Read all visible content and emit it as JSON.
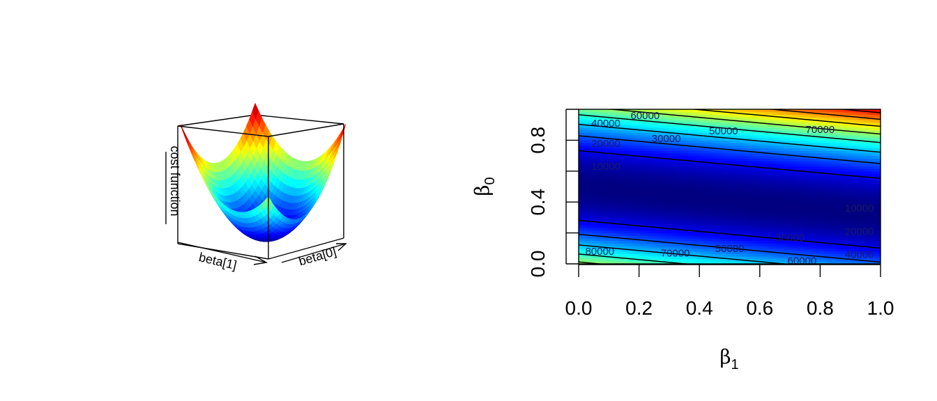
{
  "chart_data": [
    {
      "type": "surface",
      "zlabel": "cost function",
      "xlabel": "beta[1]",
      "ylabel": "beta[0]",
      "colormap": "jet (blue low to red high)",
      "shape": "convex bowl, minimum near beta[1] high / beta[0] middle",
      "box": true
    },
    {
      "type": "heatmap",
      "subtype": "filled contour with contour lines",
      "xlabel": "β",
      "xlabel_sub": "1",
      "ylabel": "β",
      "ylabel_sub": "0",
      "xlim": [
        0,
        1
      ],
      "ylim": [
        0,
        1
      ],
      "xticks": [
        "0.0",
        "0.2",
        "0.4",
        "0.6",
        "0.8",
        "1.0"
      ],
      "yticks": [
        "0.0",
        "0.4",
        "0.8"
      ],
      "colormap": "jet (blue low to red high)",
      "value_range": [
        0,
        95000
      ],
      "valley": {
        "y_at_x0": 0.5,
        "slope": -0.18
      },
      "contour_levels": [
        10000,
        20000,
        30000,
        40000,
        50000,
        60000,
        70000,
        80000,
        90000
      ],
      "contour_labels": [
        {
          "text": "60000",
          "x": 0.22,
          "y": 0.96
        },
        {
          "text": "70000",
          "x": 0.8,
          "y": 0.87
        },
        {
          "text": "40000",
          "x": 0.09,
          "y": 0.91
        },
        {
          "text": "50000",
          "x": 0.48,
          "y": 0.86
        },
        {
          "text": "30000",
          "x": 0.29,
          "y": 0.81
        },
        {
          "text": "20000",
          "x": 0.09,
          "y": 0.78
        },
        {
          "text": "10000",
          "x": 0.09,
          "y": 0.63
        },
        {
          "text": "10000",
          "x": 0.93,
          "y": 0.36
        },
        {
          "text": "20000",
          "x": 0.93,
          "y": 0.21
        },
        {
          "text": "30000",
          "x": 0.7,
          "y": 0.17
        },
        {
          "text": "50000",
          "x": 0.5,
          "y": 0.1
        },
        {
          "text": "40000",
          "x": 0.93,
          "y": 0.06
        },
        {
          "text": "80000",
          "x": 0.07,
          "y": 0.08
        },
        {
          "text": "70000",
          "x": 0.32,
          "y": 0.07
        },
        {
          "text": "60000",
          "x": 0.74,
          "y": 0.02
        }
      ]
    }
  ]
}
